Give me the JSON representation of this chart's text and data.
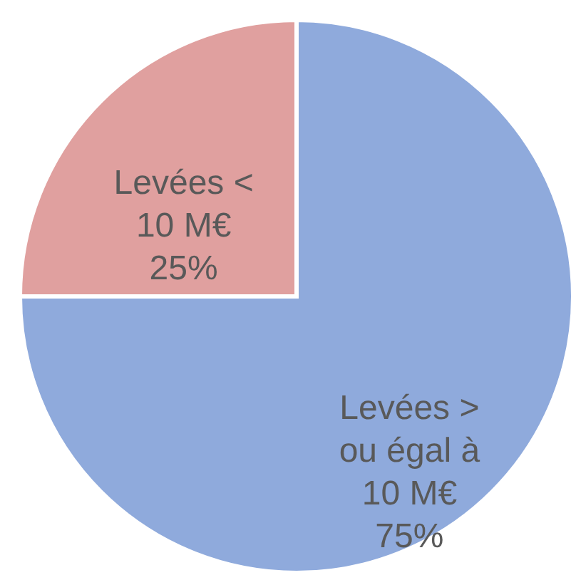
{
  "chart_data": {
    "type": "pie",
    "categories": [
      "Levées > ou égal à 10 M€",
      "Levées < 10 M€"
    ],
    "values": [
      75,
      25
    ],
    "colors": [
      "#8faadc",
      "#e0a09f"
    ],
    "value_labels": [
      "75%",
      "25%"
    ],
    "legend": false
  }
}
